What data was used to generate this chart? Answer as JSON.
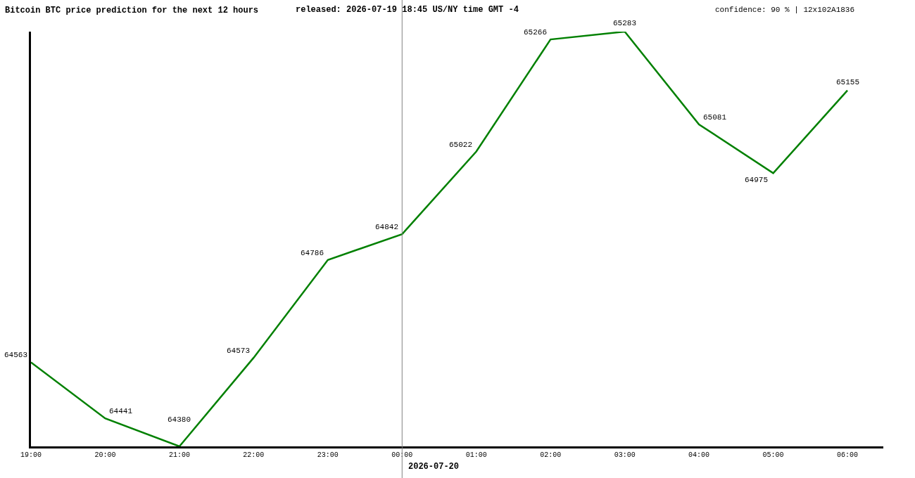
{
  "chart_data": {
    "type": "line",
    "title": "Bitcoin BTC price prediction for the next 12 hours",
    "subtitle": "released: 2026-07-19 18:45 US/NY time GMT -4",
    "annotations": [
      "confidence: 90 % | 12x102A1836"
    ],
    "categories": [
      "19:00",
      "20:00",
      "21:00",
      "22:00",
      "23:00",
      "00:00",
      "01:00",
      "02:00",
      "03:00",
      "04:00",
      "05:00",
      "06:00"
    ],
    "values": [
      64563,
      64441,
      64380,
      64573,
      64786,
      64842,
      65022,
      65266,
      65283,
      65081,
      64975,
      65155
    ],
    "color": "#008000",
    "ylim": [
      64380,
      65283
    ],
    "data_labels": true,
    "ref_lines": [
      {
        "axis": "x",
        "value": "00:00",
        "label": "2026-07-20",
        "color": "#808080"
      }
    ],
    "tick_labels": "x",
    "grid": false,
    "legend": false,
    "marker": "none",
    "line_style": "solid"
  }
}
